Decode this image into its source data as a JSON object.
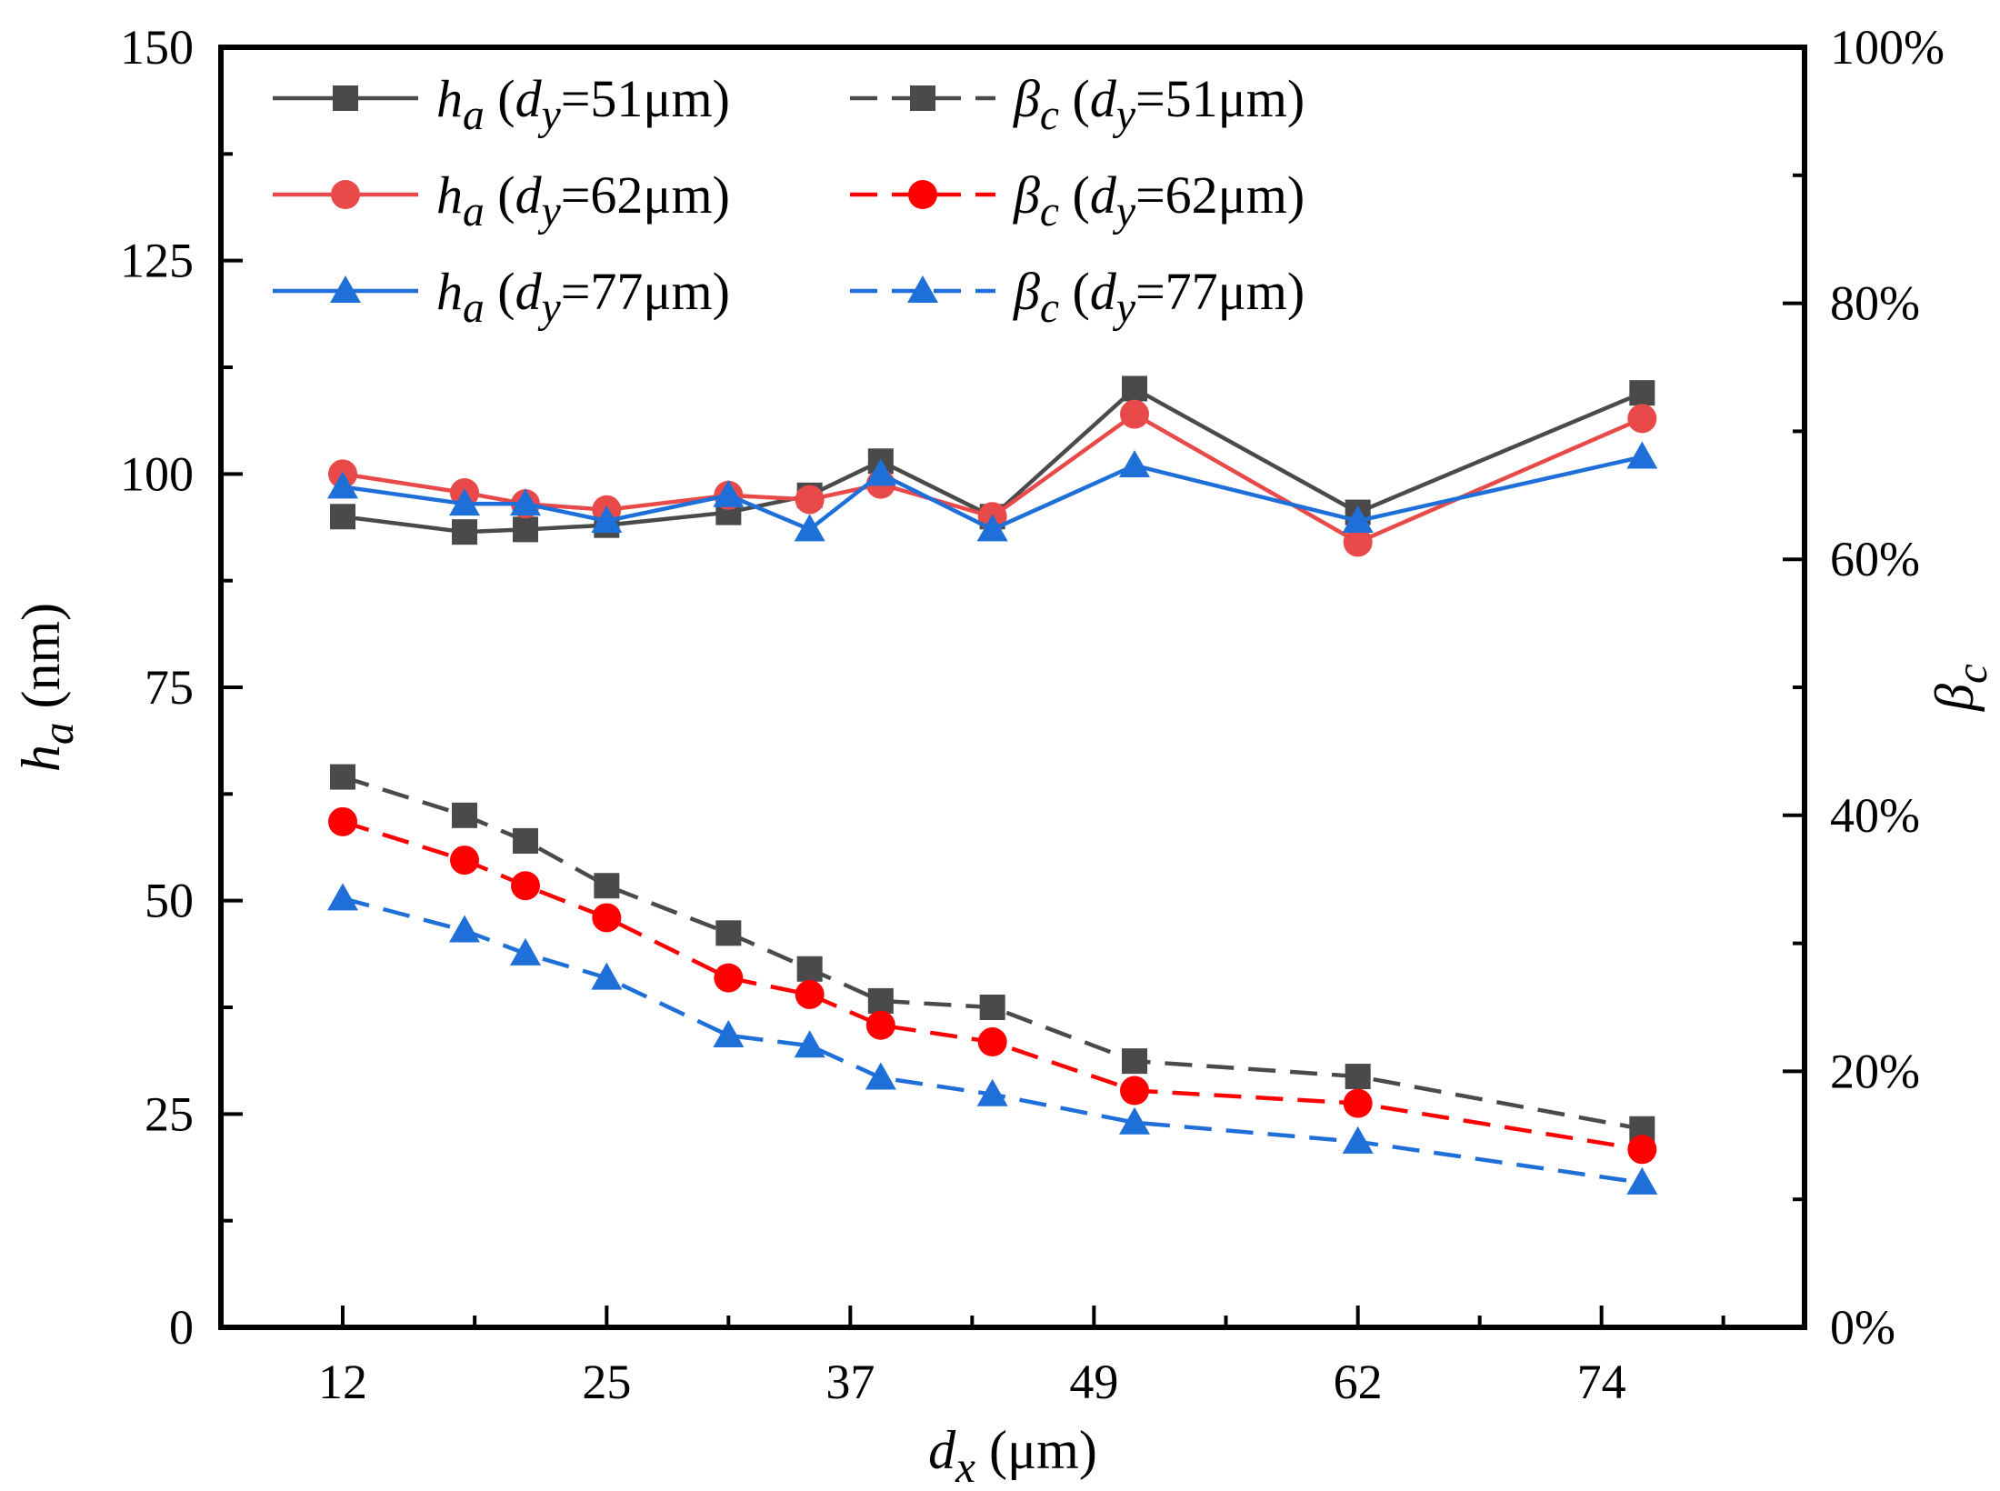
{
  "chart_data": {
    "type": "line",
    "x_title": {
      "var": "d",
      "sub": "x",
      "unit": " (μm)"
    },
    "y_left_title": {
      "var": "h",
      "sub": "a",
      "unit": " (nm)"
    },
    "y_right_title": {
      "var": "β",
      "sub": "c"
    },
    "x_tick_labels": [
      "12",
      "25",
      "37",
      "49",
      "62",
      "74"
    ],
    "x_tick_values": [
      12,
      25,
      37,
      49,
      62,
      74
    ],
    "x_range": [
      6,
      84
    ],
    "y_left_range": [
      0,
      150
    ],
    "y_left_ticks": [
      0,
      25,
      50,
      75,
      100,
      125,
      150
    ],
    "y_right_range": [
      0,
      100
    ],
    "y_right_ticks": [
      0,
      20,
      40,
      60,
      80,
      100
    ],
    "y_right_tick_labels": [
      "0%",
      "20%",
      "40%",
      "60%",
      "80%",
      "100%"
    ],
    "x": [
      12,
      18,
      21,
      25,
      31,
      35,
      38.5,
      44,
      51,
      62,
      76
    ],
    "series": [
      {
        "name": "h_a (d_y=51μm)",
        "legend": {
          "var": "h",
          "sub": "a",
          "dy": "51μm"
        },
        "axis": "left",
        "style": "solid",
        "marker": "square",
        "color": "#4a4a4a",
        "values": [
          95,
          93.2,
          93.5,
          94,
          95.5,
          97.5,
          101.5,
          95,
          110,
          95.5,
          109.5
        ]
      },
      {
        "name": "h_a (d_y=62μm)",
        "legend": {
          "var": "h",
          "sub": "a",
          "dy": "62μm"
        },
        "axis": "left",
        "style": "solid",
        "marker": "circle",
        "color": "#e84a4a",
        "values": [
          100,
          97.8,
          96.5,
          95.8,
          97.5,
          97,
          98.8,
          95,
          107,
          92,
          106.5
        ]
      },
      {
        "name": "h_a (d_y=77μm)",
        "legend": {
          "var": "h",
          "sub": "a",
          "dy": "77μm"
        },
        "axis": "left",
        "style": "solid",
        "marker": "triangle",
        "color": "#1f6fd8",
        "values": [
          98.5,
          96.5,
          96.5,
          94.5,
          97.5,
          93.5,
          100,
          93.5,
          101,
          94.5,
          102
        ]
      },
      {
        "name": "β_c (d_y=51μm)",
        "legend": {
          "var": "β",
          "sub": "c",
          "dy": "51μm"
        },
        "axis": "right",
        "style": "dashed",
        "marker": "square",
        "color": "#4a4a4a",
        "values": [
          43,
          40,
          38,
          34.5,
          30.8,
          28,
          25.5,
          25,
          20.8,
          19.6,
          15.5
        ]
      },
      {
        "name": "β_c (d_y=62μm)",
        "legend": {
          "var": "β",
          "sub": "c",
          "dy": "62μm"
        },
        "axis": "right",
        "style": "dashed",
        "marker": "circle",
        "color": "#ff0000",
        "values": [
          39.5,
          36.5,
          34.5,
          32,
          27.3,
          26,
          23.6,
          22.3,
          18.5,
          17.5,
          13.9
        ]
      },
      {
        "name": "β_c (d_y=77μm)",
        "legend": {
          "var": "β",
          "sub": "c",
          "dy": "77μm"
        },
        "axis": "right",
        "style": "dashed",
        "marker": "triangle",
        "color": "#1f6fd8",
        "values": [
          33.5,
          31,
          29.2,
          27.3,
          22.8,
          22,
          19.5,
          18.2,
          16,
          14.5,
          11.3
        ]
      }
    ]
  }
}
